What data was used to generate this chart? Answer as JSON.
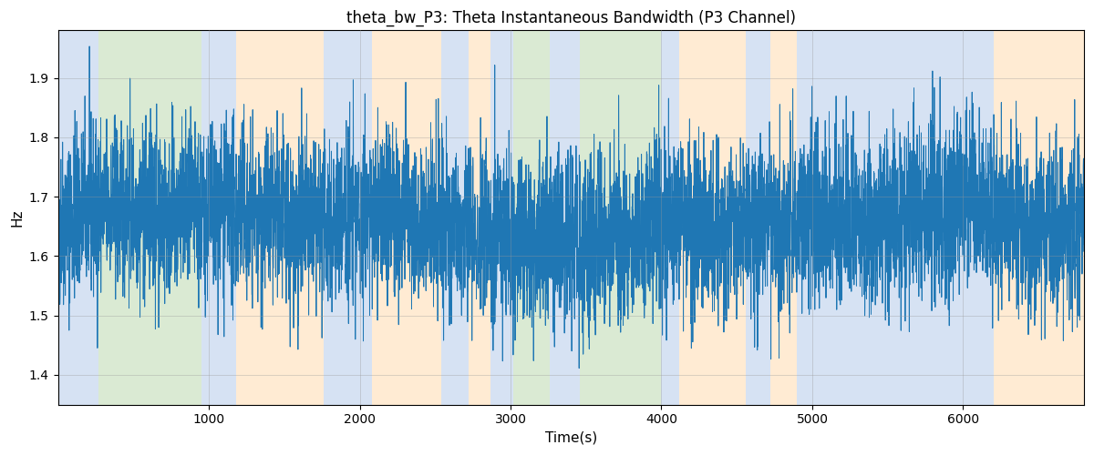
{
  "title": "theta_bw_P3: Theta Instantaneous Bandwidth (P3 Channel)",
  "xlabel": "Time(s)",
  "ylabel": "Hz",
  "xlim": [
    0,
    6800
  ],
  "ylim": [
    1.35,
    1.98
  ],
  "line_color": "#1f77b4",
  "line_width": 0.7,
  "seed": 42,
  "n_points": 6800,
  "mean": 1.655,
  "std": 0.072,
  "colored_regions": [
    {
      "start": 0,
      "end": 270,
      "color": "#aec6e8",
      "alpha": 0.5
    },
    {
      "start": 270,
      "end": 950,
      "color": "#b6d7a8",
      "alpha": 0.5
    },
    {
      "start": 950,
      "end": 1180,
      "color": "#aec6e8",
      "alpha": 0.5
    },
    {
      "start": 1180,
      "end": 1760,
      "color": "#ffd8a8",
      "alpha": 0.5
    },
    {
      "start": 1760,
      "end": 2080,
      "color": "#aec6e8",
      "alpha": 0.5
    },
    {
      "start": 2080,
      "end": 2540,
      "color": "#ffd8a8",
      "alpha": 0.5
    },
    {
      "start": 2540,
      "end": 2720,
      "color": "#aec6e8",
      "alpha": 0.5
    },
    {
      "start": 2720,
      "end": 2870,
      "color": "#ffd8a8",
      "alpha": 0.5
    },
    {
      "start": 2870,
      "end": 3020,
      "color": "#aec6e8",
      "alpha": 0.5
    },
    {
      "start": 3020,
      "end": 3260,
      "color": "#b6d7a8",
      "alpha": 0.5
    },
    {
      "start": 3260,
      "end": 3460,
      "color": "#aec6e8",
      "alpha": 0.5
    },
    {
      "start": 3460,
      "end": 4000,
      "color": "#b6d7a8",
      "alpha": 0.5
    },
    {
      "start": 4000,
      "end": 4120,
      "color": "#aec6e8",
      "alpha": 0.5
    },
    {
      "start": 4120,
      "end": 4560,
      "color": "#ffd8a8",
      "alpha": 0.5
    },
    {
      "start": 4560,
      "end": 4720,
      "color": "#aec6e8",
      "alpha": 0.5
    },
    {
      "start": 4720,
      "end": 4900,
      "color": "#ffd8a8",
      "alpha": 0.5
    },
    {
      "start": 4900,
      "end": 6200,
      "color": "#aec6e8",
      "alpha": 0.5
    },
    {
      "start": 6200,
      "end": 6800,
      "color": "#ffd8a8",
      "alpha": 0.5
    }
  ],
  "yticks": [
    1.4,
    1.5,
    1.6,
    1.7,
    1.8,
    1.9
  ],
  "xticks": [
    1000,
    2000,
    3000,
    4000,
    5000,
    6000
  ],
  "grid_color": "#999999",
  "grid_alpha": 0.5,
  "grid_linewidth": 0.5,
  "title_fontsize": 12,
  "label_fontsize": 11,
  "tick_fontsize": 10
}
